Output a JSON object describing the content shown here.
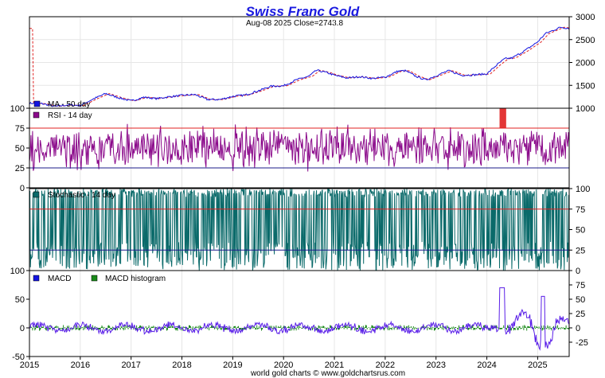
{
  "chart_data": {
    "type": "line",
    "title": "Swiss Franc Gold",
    "subtitle": "Aug-08  2025   Close=2743.8",
    "footer": "world gold charts © www.goldchartsrus.com",
    "x": {
      "range": [
        2015.0,
        2025.62
      ],
      "tick_labels": [
        "2015",
        "2016",
        "2017",
        "2018",
        "2019",
        "2020",
        "2021",
        "2022",
        "2023",
        "2024",
        "2025"
      ]
    },
    "price": {
      "ylim": [
        1000,
        3000
      ],
      "tick_labels": [
        "3000",
        "2500",
        "2000",
        "1500",
        "1000"
      ],
      "tick_values": [
        3000,
        2500,
        2000,
        1500,
        1000
      ],
      "ma_label": "MA - 50 day",
      "colors": {
        "price": "#1414e0",
        "ma": "#e02020"
      },
      "points": [
        [
          2015.0,
          1110
        ],
        [
          2015.25,
          1100
        ],
        [
          2015.5,
          1040
        ],
        [
          2015.75,
          1070
        ],
        [
          2016.0,
          1060
        ],
        [
          2016.25,
          1200
        ],
        [
          2016.5,
          1320
        ],
        [
          2016.75,
          1230
        ],
        [
          2017.0,
          1160
        ],
        [
          2017.25,
          1240
        ],
        [
          2017.5,
          1210
        ],
        [
          2017.75,
          1250
        ],
        [
          2018.0,
          1280
        ],
        [
          2018.25,
          1300
        ],
        [
          2018.5,
          1190
        ],
        [
          2018.75,
          1190
        ],
        [
          2019.0,
          1260
        ],
        [
          2019.25,
          1290
        ],
        [
          2019.5,
          1380
        ],
        [
          2019.75,
          1480
        ],
        [
          2020.0,
          1490
        ],
        [
          2020.25,
          1620
        ],
        [
          2020.5,
          1700
        ],
        [
          2020.65,
          1830
        ],
        [
          2020.85,
          1780
        ],
        [
          2021.0,
          1720
        ],
        [
          2021.25,
          1660
        ],
        [
          2021.5,
          1690
        ],
        [
          2021.75,
          1650
        ],
        [
          2022.0,
          1680
        ],
        [
          2022.25,
          1810
        ],
        [
          2022.4,
          1820
        ],
        [
          2022.6,
          1700
        ],
        [
          2022.8,
          1620
        ],
        [
          2023.0,
          1710
        ],
        [
          2023.25,
          1820
        ],
        [
          2023.5,
          1720
        ],
        [
          2023.75,
          1730
        ],
        [
          2024.0,
          1750
        ],
        [
          2024.2,
          1950
        ],
        [
          2024.35,
          2080
        ],
        [
          2024.5,
          2100
        ],
        [
          2024.75,
          2260
        ],
        [
          2025.0,
          2450
        ],
        [
          2025.15,
          2630
        ],
        [
          2025.3,
          2700
        ],
        [
          2025.45,
          2770
        ],
        [
          2025.62,
          2743.8
        ]
      ]
    },
    "rsi": {
      "label": "RSI - 14 day",
      "ylim": [
        0,
        100
      ],
      "left_tick_labels": [
        "100",
        "75",
        "50",
        "25",
        "0"
      ],
      "tick_values": [
        100,
        75,
        50,
        25,
        0
      ],
      "levels": [
        75,
        25
      ],
      "colors": {
        "line": "#8b0a8b",
        "upper": "#e02020",
        "lower": "#1b1b8a",
        "overbought": "#e02020"
      }
    },
    "stochastic": {
      "label": "Stochastic - 14 day",
      "ylim": [
        0,
        100
      ],
      "right_tick_labels": [
        "100",
        "75",
        "50",
        "25",
        "0"
      ],
      "tick_values": [
        100,
        75,
        50,
        25,
        0
      ],
      "levels": [
        75,
        25
      ],
      "colors": {
        "line": "#0a6a6a",
        "upper": "#e02020",
        "lower": "#1b1b8a"
      }
    },
    "macd": {
      "label": "MACD",
      "hist_label": "MACD histogram",
      "ylim": [
        -50,
        100
      ],
      "left_tick_labels": [
        "100",
        "50",
        "0",
        "-50"
      ],
      "tick_values": [
        100,
        50,
        0,
        -50
      ],
      "right_tick_labels": [
        "75",
        "50",
        "25",
        "0",
        "-25"
      ],
      "right_tick_values": [
        75,
        50,
        25,
        0,
        -25
      ],
      "colors": {
        "macd": "#5a1fe8",
        "histogram": "#1a8a1a"
      }
    },
    "grid": true
  }
}
